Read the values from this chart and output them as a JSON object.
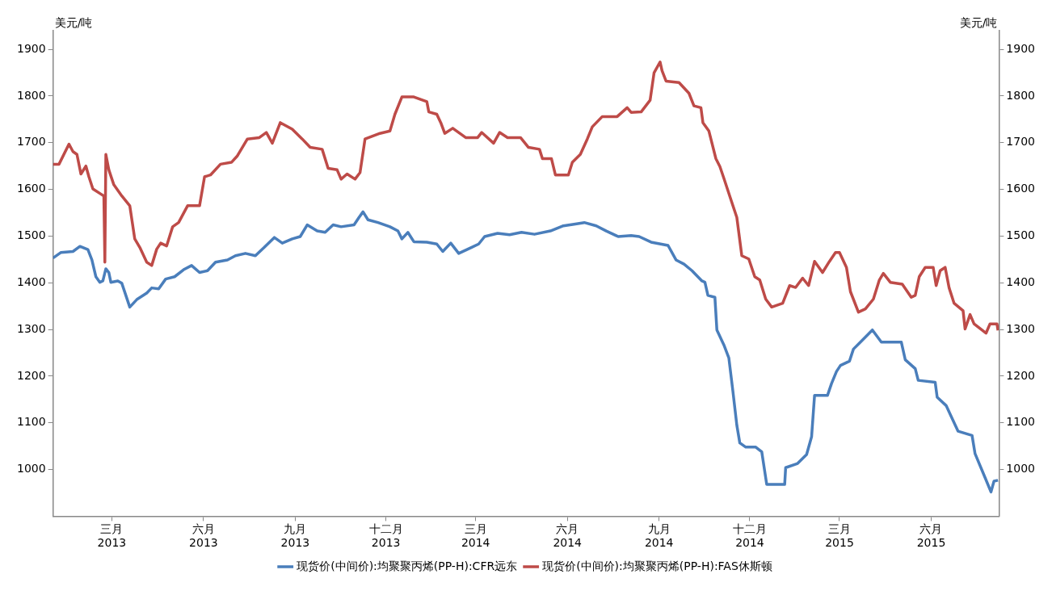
{
  "chart_data": {
    "type": "line",
    "ylabel": "美元/吨",
    "y2label": "美元/吨",
    "xlim": [
      "2013-01-01",
      "2015-08-08"
    ],
    "xticks": [
      {
        "value": "2013-03-01",
        "label": "三月\n2013"
      },
      {
        "value": "2013-06-01",
        "label": "六月\n2013"
      },
      {
        "value": "2013-09-01",
        "label": "九月\n2013"
      },
      {
        "value": "2013-12-01",
        "label": "十二月\n2013"
      },
      {
        "value": "2014-03-01",
        "label": "三月\n2014"
      },
      {
        "value": "2014-06-01",
        "label": "六月\n2014"
      },
      {
        "value": "2014-09-01",
        "label": "九月\n2014"
      },
      {
        "value": "2014-12-01",
        "label": "十二月\n2014"
      },
      {
        "value": "2015-03-01",
        "label": "三月\n2015"
      },
      {
        "value": "2015-06-01",
        "label": "六月\n2015"
      }
    ],
    "ylim": [
      900,
      1940
    ],
    "yticks": [
      1000,
      1100,
      1200,
      1300,
      1400,
      1500,
      1600,
      1700,
      1800,
      1900
    ],
    "y2lim": [
      900,
      1940
    ],
    "y2ticks": [
      1000,
      1100,
      1200,
      1300,
      1400,
      1500,
      1600,
      1700,
      1800,
      1900
    ],
    "grid": false,
    "legend": "bottom",
    "marker": "none",
    "line_style": "solid",
    "series": [
      {
        "name": "现货价(中间价):均聚聚丙烯(PP-H):CFR远东",
        "color": "#4a7ebb",
        "x": [
          "2013-01-01",
          "2013-01-09",
          "2013-01-21",
          "2013-01-28",
          "2013-02-05",
          "2013-02-09",
          "2013-02-13",
          "2013-02-17",
          "2013-02-20",
          "2013-02-23",
          "2013-02-26",
          "2013-02-28",
          "2013-03-07",
          "2013-03-11",
          "2013-03-19",
          "2013-03-26",
          "2013-04-05",
          "2013-04-10",
          "2013-04-17",
          "2013-04-24",
          "2013-05-03",
          "2013-05-12",
          "2013-05-20",
          "2013-05-28",
          "2013-06-05",
          "2013-06-13",
          "2013-06-25",
          "2013-07-03",
          "2013-07-13",
          "2013-07-23",
          "2013-08-01",
          "2013-08-11",
          "2013-08-19",
          "2013-08-29",
          "2013-09-06",
          "2013-09-13",
          "2013-09-23",
          "2013-10-01",
          "2013-10-09",
          "2013-10-17",
          "2013-10-30",
          "2013-11-04",
          "2013-11-08",
          "2013-11-13",
          "2013-11-23",
          "2013-12-05",
          "2013-12-13",
          "2013-12-17",
          "2013-12-23",
          "2013-12-29",
          "2014-01-11",
          "2014-01-21",
          "2014-01-27",
          "2014-02-04",
          "2014-02-12",
          "2014-02-25",
          "2014-03-04",
          "2014-03-10",
          "2014-03-23",
          "2014-04-04",
          "2014-04-16",
          "2014-04-29",
          "2014-05-15",
          "2014-05-28",
          "2014-06-09",
          "2014-06-18",
          "2014-06-30",
          "2014-07-10",
          "2014-07-22",
          "2014-08-04",
          "2014-08-12",
          "2014-08-24",
          "2014-09-10",
          "2014-09-18",
          "2014-09-26",
          "2014-10-04",
          "2014-10-14",
          "2014-10-17",
          "2014-10-20",
          "2014-10-27",
          "2014-10-29",
          "2014-11-05",
          "2014-11-10",
          "2014-11-14",
          "2014-11-18",
          "2014-11-21",
          "2014-11-27",
          "2014-12-07",
          "2014-12-13",
          "2014-12-18",
          "2015-01-05",
          "2015-01-06",
          "2015-01-18",
          "2015-01-27",
          "2015-02-01",
          "2015-02-04",
          "2015-02-17",
          "2015-02-21",
          "2015-02-26",
          "2015-03-02",
          "2015-03-11",
          "2015-03-15",
          "2015-03-22",
          "2015-04-03",
          "2015-04-12",
          "2015-05-02",
          "2015-05-06",
          "2015-05-16",
          "2015-05-19",
          "2015-06-05",
          "2015-06-07",
          "2015-06-16",
          "2015-06-28",
          "2015-07-12",
          "2015-07-15",
          "2015-07-24",
          "2015-07-31",
          "2015-08-03",
          "2015-08-07"
        ],
        "values": [
          1453,
          1465,
          1467,
          1478,
          1471,
          1449,
          1413,
          1401,
          1404,
          1430,
          1422,
          1401,
          1404,
          1399,
          1348,
          1364,
          1378,
          1389,
          1387,
          1408,
          1413,
          1428,
          1437,
          1422,
          1426,
          1444,
          1449,
          1458,
          1463,
          1458,
          1476,
          1497,
          1485,
          1494,
          1499,
          1524,
          1511,
          1508,
          1524,
          1520,
          1524,
          1540,
          1552,
          1535,
          1529,
          1520,
          1511,
          1494,
          1508,
          1488,
          1487,
          1483,
          1467,
          1485,
          1463,
          1476,
          1483,
          1499,
          1506,
          1503,
          1508,
          1504,
          1511,
          1522,
          1526,
          1529,
          1522,
          1511,
          1499,
          1501,
          1499,
          1487,
          1480,
          1449,
          1440,
          1426,
          1404,
          1401,
          1373,
          1369,
          1299,
          1267,
          1239,
          1169,
          1095,
          1057,
          1048,
          1048,
          1038,
          968,
          968,
          1004,
          1013,
          1032,
          1070,
          1159,
          1159,
          1184,
          1210,
          1223,
          1232,
          1258,
          1273,
          1299,
          1273,
          1273,
          1235,
          1216,
          1191,
          1187,
          1155,
          1137,
          1082,
          1073,
          1034,
          988,
          952,
          975,
          977
        ]
      },
      {
        "name": "现货价(中间价):均聚聚丙烯(PP-H):FAS休斯顿",
        "color": "#be4b48",
        "x": [
          "2013-01-01",
          "2013-01-07",
          "2013-01-17",
          "2013-01-21",
          "2013-01-25",
          "2013-01-29",
          "2013-02-03",
          "2013-02-06",
          "2013-02-10",
          "2013-02-18",
          "2013-02-21",
          "2013-02-22",
          "2013-02-23",
          "2013-02-26",
          "2013-03-03",
          "2013-03-11",
          "2013-03-19",
          "2013-03-24",
          "2013-03-29",
          "2013-04-05",
          "2013-04-10",
          "2013-04-15",
          "2013-04-19",
          "2013-04-25",
          "2013-05-01",
          "2013-05-07",
          "2013-05-16",
          "2013-05-28",
          "2013-06-02",
          "2013-06-08",
          "2013-06-18",
          "2013-06-29",
          "2013-07-05",
          "2013-07-15",
          "2013-07-27",
          "2013-08-03",
          "2013-08-09",
          "2013-08-17",
          "2013-08-29",
          "2013-09-08",
          "2013-09-16",
          "2013-09-28",
          "2013-10-04",
          "2013-10-13",
          "2013-10-17",
          "2013-10-23",
          "2013-10-31",
          "2013-11-05",
          "2013-11-10",
          "2013-11-25",
          "2013-12-05",
          "2013-12-10",
          "2013-12-17",
          "2013-12-29",
          "2014-01-11",
          "2014-01-13",
          "2014-01-21",
          "2014-01-25",
          "2014-01-29",
          "2014-02-06",
          "2014-02-19",
          "2014-03-03",
          "2014-03-07",
          "2014-03-19",
          "2014-03-25",
          "2014-04-02",
          "2014-04-15",
          "2014-04-23",
          "2014-05-04",
          "2014-05-07",
          "2014-05-16",
          "2014-05-20",
          "2014-06-02",
          "2014-06-06",
          "2014-06-14",
          "2014-06-21",
          "2014-06-26",
          "2014-07-06",
          "2014-07-21",
          "2014-07-31",
          "2014-08-04",
          "2014-08-14",
          "2014-08-23",
          "2014-08-27",
          "2014-09-02",
          "2014-09-04",
          "2014-09-08",
          "2014-09-21",
          "2014-10-01",
          "2014-10-06",
          "2014-10-13",
          "2014-10-15",
          "2014-10-21",
          "2014-10-28",
          "2014-11-01",
          "2014-11-05",
          "2014-11-11",
          "2014-11-18",
          "2014-11-23",
          "2014-11-30",
          "2014-12-06",
          "2014-12-11",
          "2014-12-17",
          "2014-12-23",
          "2015-01-03",
          "2015-01-10",
          "2015-01-16",
          "2015-01-23",
          "2015-01-29",
          "2015-02-04",
          "2015-02-12",
          "2015-02-19",
          "2015-02-25",
          "2015-03-01",
          "2015-03-08",
          "2015-03-12",
          "2015-03-20",
          "2015-03-27",
          "2015-04-04",
          "2015-04-10",
          "2015-04-14",
          "2015-04-21",
          "2015-05-03",
          "2015-05-12",
          "2015-05-16",
          "2015-05-20",
          "2015-05-26",
          "2015-06-03",
          "2015-06-06",
          "2015-06-10",
          "2015-06-15",
          "2015-06-19",
          "2015-06-24",
          "2015-07-03",
          "2015-07-05",
          "2015-07-10",
          "2015-07-14",
          "2015-07-26",
          "2015-07-30",
          "2015-08-06",
          "2015-08-07"
        ],
        "values": [
          1654,
          1654,
          1697,
          1681,
          1675,
          1633,
          1650,
          1627,
          1601,
          1590,
          1586,
          1444,
          1675,
          1642,
          1610,
          1586,
          1565,
          1494,
          1476,
          1444,
          1437,
          1472,
          1485,
          1479,
          1520,
          1529,
          1565,
          1565,
          1627,
          1631,
          1654,
          1658,
          1672,
          1708,
          1711,
          1722,
          1699,
          1743,
          1729,
          1708,
          1690,
          1686,
          1645,
          1642,
          1622,
          1633,
          1622,
          1636,
          1708,
          1720,
          1725,
          1761,
          1798,
          1798,
          1788,
          1766,
          1761,
          1743,
          1720,
          1731,
          1711,
          1711,
          1722,
          1699,
          1722,
          1711,
          1711,
          1690,
          1686,
          1666,
          1666,
          1631,
          1631,
          1658,
          1675,
          1708,
          1734,
          1756,
          1756,
          1775,
          1765,
          1766,
          1791,
          1850,
          1873,
          1854,
          1832,
          1829,
          1806,
          1779,
          1775,
          1743,
          1725,
          1666,
          1649,
          1624,
          1585,
          1540,
          1458,
          1451,
          1413,
          1406,
          1365,
          1348,
          1356,
          1394,
          1390,
          1410,
          1394,
          1446,
          1422,
          1446,
          1465,
          1465,
          1433,
          1381,
          1337,
          1344,
          1365,
          1406,
          1420,
          1401,
          1397,
          1369,
          1373,
          1413,
          1433,
          1433,
          1394,
          1426,
          1433,
          1389,
          1356,
          1340,
          1301,
          1332,
          1312,
          1292,
          1312,
          1312,
          1298
        ]
      }
    ]
  }
}
